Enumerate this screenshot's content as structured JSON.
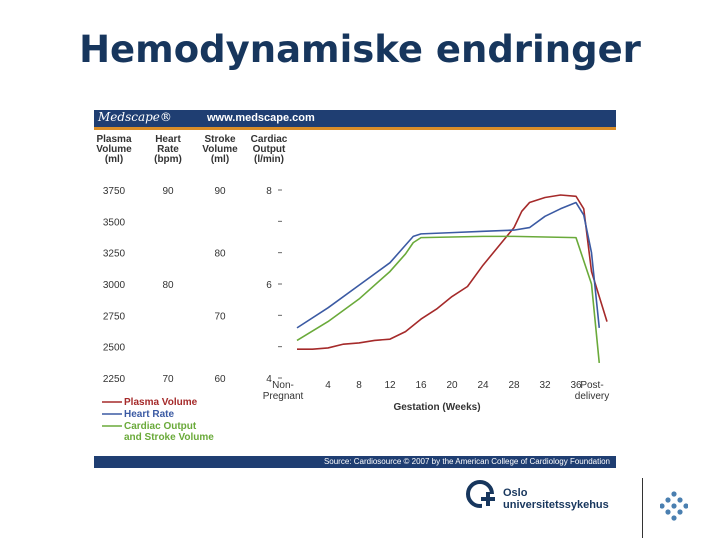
{
  "slide": {
    "title": "Hemodynamiske endringer"
  },
  "chart_header": {
    "brand": "Medscape®",
    "url": "www.medscape.com"
  },
  "chart_footer": {
    "source": "Source: Cardiosource © 2007 by the American College of Cardiology Foundation"
  },
  "logo": {
    "line1": "Oslo",
    "line2": "universitetssykehus"
  },
  "chart_data": {
    "type": "line",
    "xlabel": "Gestation (Weeks)",
    "x_ticks": [
      "Non-\nPregnant",
      "4",
      "8",
      "12",
      "16",
      "20",
      "24",
      "28",
      "32",
      "36",
      "Post-\ndelivery"
    ],
    "axes": [
      {
        "label": "Plasma\nVolume\n(ml)",
        "ticks": [
          "3750",
          "3500",
          "3250",
          "3000",
          "2750",
          "2500",
          "2250"
        ]
      },
      {
        "label": "Heart\nRate\n(bpm)",
        "ticks": [
          "90",
          "80",
          "70"
        ]
      },
      {
        "label": "Stroke\nVolume\n(ml)",
        "ticks": [
          "90",
          "80",
          "70",
          "60"
        ]
      },
      {
        "label": "Cardiac\nOutput\n(l/min)",
        "ticks": [
          "8",
          "6",
          "4"
        ]
      }
    ],
    "plasma_ylim": [
      2250,
      3750
    ],
    "legend": [
      "Plasma Volume",
      "Heart Rate",
      "Cardiac Output\nand Stroke Volume"
    ],
    "legend_placement": "bottom-left",
    "colors": {
      "plasma": "#a52a2a",
      "heart_rate": "#3b5aa3",
      "cardiac": "#6aaa3a",
      "header": "#1f3e72",
      "stripe": "#d98d28",
      "title": "#17365d"
    },
    "series": [
      {
        "name": "Plasma Volume",
        "x": [
          0,
          2,
          4,
          6,
          8,
          10,
          12,
          14,
          16,
          18,
          20,
          22,
          24,
          26,
          28,
          29,
          30,
          32,
          34,
          36,
          37,
          38,
          40
        ],
        "values": [
          2480,
          2480,
          2490,
          2520,
          2530,
          2550,
          2560,
          2620,
          2720,
          2800,
          2900,
          2980,
          3150,
          3300,
          3450,
          3580,
          3650,
          3690,
          3710,
          3700,
          3600,
          3100,
          2700
        ]
      },
      {
        "name": "Heart Rate",
        "x": [
          0,
          4,
          8,
          12,
          14,
          15,
          16,
          20,
          24,
          28,
          30,
          32,
          34,
          36,
          37,
          38,
          39
        ],
        "values": [
          2650,
          2810,
          2990,
          3170,
          3310,
          3380,
          3400,
          3410,
          3420,
          3430,
          3450,
          3540,
          3600,
          3650,
          3550,
          3250,
          2650
        ]
      },
      {
        "name": "Cardiac Output and Stroke Volume",
        "x": [
          0,
          4,
          8,
          12,
          14,
          15,
          16,
          20,
          24,
          28,
          32,
          36,
          38,
          39
        ],
        "values": [
          2550,
          2700,
          2880,
          3100,
          3240,
          3330,
          3370,
          3375,
          3380,
          3380,
          3375,
          3370,
          3000,
          2370
        ]
      }
    ]
  }
}
